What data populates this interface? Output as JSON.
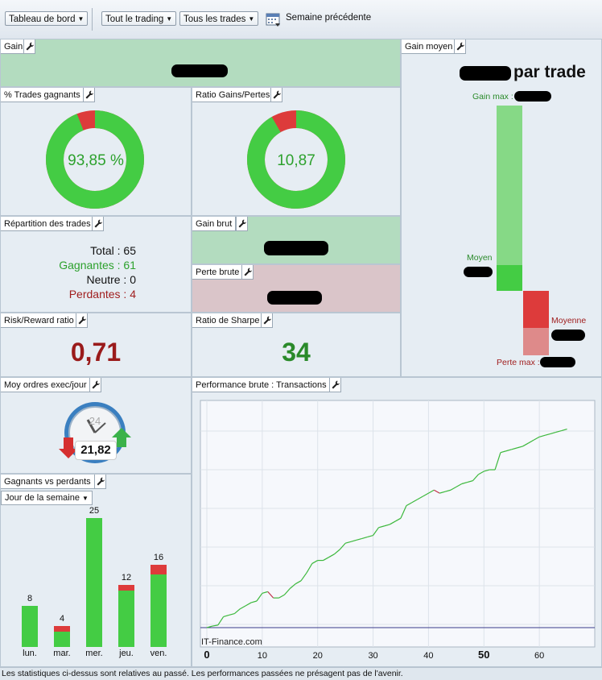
{
  "toolbar": {
    "dashboard": "Tableau de bord",
    "trading": "Tout le trading",
    "trades": "Tous les trades",
    "period": "Semaine précédente"
  },
  "gain": {
    "title": "Gain"
  },
  "avg_gain": {
    "title": "Gain moyen",
    "per_trade": "par trade",
    "max_label": "Gain max :",
    "avg_label": "Moyen",
    "avg_loss_label": "Moyenne",
    "max_loss_label": "Perte max :",
    "colors": {
      "gain": "#44cc44",
      "gain_light": "#86d986",
      "loss": "#dd3b3b",
      "loss_light": "#de8a8a"
    }
  },
  "win_pct": {
    "title": "% Trades gagnants",
    "value": "93,85 %",
    "fraction": 0.9385
  },
  "ratio": {
    "title": "Ratio Gains/Pertes",
    "value": "10,87",
    "fraction": 0.9157
  },
  "breakdown": {
    "title": "Répartition des trades",
    "total": "Total : 65",
    "winners": "Gagnantes : 61",
    "neutral": "Neutre : 0",
    "losers": "Perdantes : 4"
  },
  "gross_gain": {
    "title": "Gain brut"
  },
  "gross_loss": {
    "title": "Perte brute"
  },
  "risk_reward": {
    "title": "Risk/Reward ratio",
    "value": "0,71"
  },
  "sharpe": {
    "title": "Ratio de Sharpe",
    "value": "34"
  },
  "orders": {
    "title": "Moy ordres exec/jour",
    "gauge": "24",
    "value": "21,82"
  },
  "win_lose": {
    "title": "Gagnants vs perdants",
    "filter": "Jour de la semaine",
    "chart_data": {
      "type": "bar",
      "categories": [
        "lun.",
        "mar.",
        "mer.",
        "jeu.",
        "ven."
      ],
      "series": [
        {
          "values": [
            8,
            3,
            25,
            11,
            14
          ],
          "color": "#44cc44"
        },
        {
          "values": [
            0,
            1,
            0,
            1,
            2
          ],
          "color": "#dd3b3b"
        }
      ],
      "labels": [
        "8",
        "4",
        "25",
        "12",
        "16"
      ],
      "ylim": [
        0,
        25
      ]
    }
  },
  "performance": {
    "title": "Performance brute : Transactions",
    "watermark": "IT-Finance.com",
    "chart_data": {
      "type": "line",
      "xlim": [
        0,
        70
      ],
      "x_ticks": [
        "0",
        "10",
        "20",
        "30",
        "40",
        "50",
        "60"
      ],
      "bold_ticks": [
        "0",
        "50"
      ],
      "series": [
        {
          "x": [
            0,
            1,
            2,
            3,
            4,
            5,
            6,
            7,
            8,
            9,
            10,
            11,
            12,
            13,
            14,
            15,
            16,
            17,
            18,
            19,
            20,
            21,
            22,
            23,
            24,
            25,
            26,
            27,
            28,
            29,
            30,
            31,
            32,
            33,
            34,
            35,
            36,
            37,
            38,
            39,
            40,
            41,
            42,
            43,
            44,
            45,
            46,
            47,
            48,
            49,
            50,
            51,
            52,
            53,
            54,
            55,
            56,
            57,
            58,
            59,
            60,
            61,
            62,
            63,
            64,
            65
          ],
          "y": [
            0,
            0.5,
            0.8,
            3.5,
            4,
            4.5,
            6,
            7,
            8,
            8.5,
            11,
            11.5,
            9.5,
            9.5,
            10.5,
            12.5,
            14,
            15,
            17.5,
            20.5,
            21.5,
            21.5,
            22.5,
            23.5,
            25,
            27,
            27.5,
            28,
            28.5,
            29,
            29.5,
            32,
            32.5,
            33,
            34,
            35,
            39,
            40,
            41,
            42,
            43,
            44,
            43,
            43.5,
            44,
            45,
            46,
            46.5,
            47,
            49,
            50,
            50.5,
            50.5,
            56,
            56.5,
            57,
            57.5,
            58,
            59,
            60,
            61,
            61.5,
            62,
            62.5,
            63,
            63.5
          ]
        }
      ]
    }
  },
  "footer": "Les statistiques ci-dessus sont relatives au passé. Les performances passées ne présagent pas de l'avenir."
}
